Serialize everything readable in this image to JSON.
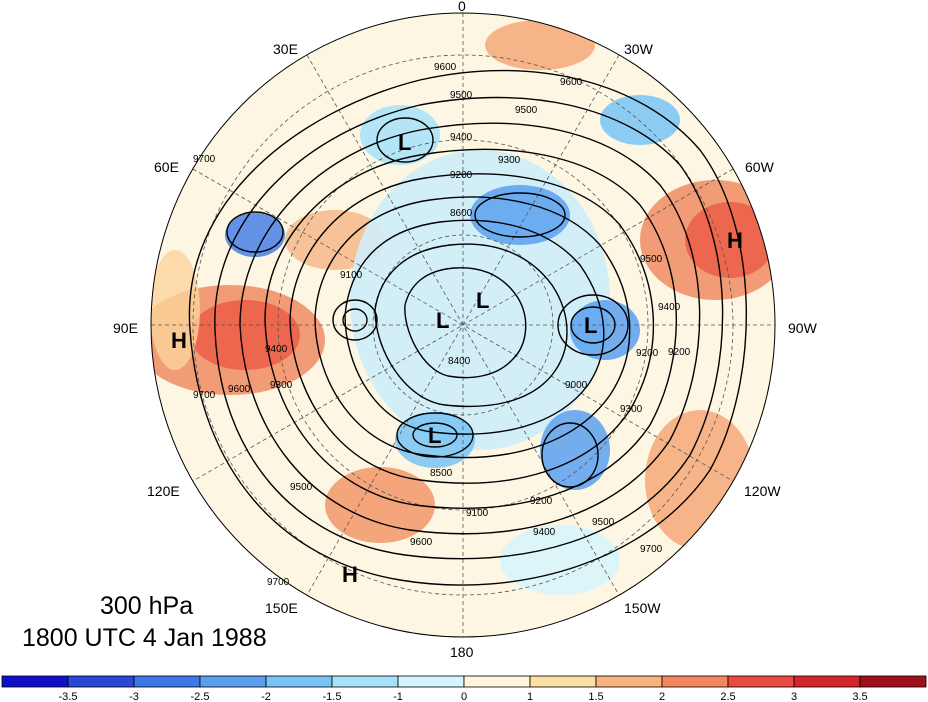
{
  "map": {
    "level": "300 hPa",
    "valid_time": "1800 UTC 4 Jan 1988",
    "longitude_labels": [
      {
        "id": "lon-0",
        "text": "0"
      },
      {
        "id": "lon-30w",
        "text": "30W"
      },
      {
        "id": "lon-60w",
        "text": "60W"
      },
      {
        "id": "lon-90w",
        "text": "90W"
      },
      {
        "id": "lon-120w",
        "text": "120W"
      },
      {
        "id": "lon-150w",
        "text": "150W"
      },
      {
        "id": "lon-180",
        "text": "180"
      },
      {
        "id": "lon-150e",
        "text": "150E"
      },
      {
        "id": "lon-120e",
        "text": "120E"
      },
      {
        "id": "lon-90e",
        "text": "90E"
      },
      {
        "id": "lon-60e",
        "text": "60E"
      },
      {
        "id": "lon-30e",
        "text": "30E"
      }
    ],
    "centers": [
      {
        "id": "low-scandinavia",
        "text": "L"
      },
      {
        "id": "low-pole-1",
        "text": "L"
      },
      {
        "id": "low-pole-2",
        "text": "L"
      },
      {
        "id": "low-canada",
        "text": "L"
      },
      {
        "id": "low-siberia",
        "text": "L"
      },
      {
        "id": "high-atlantic",
        "text": "H"
      },
      {
        "id": "high-asia",
        "text": "H"
      },
      {
        "id": "high-pacific",
        "text": "H"
      }
    ],
    "contour_labels": [
      {
        "id": "c9600-a",
        "text": "9600"
      },
      {
        "id": "c9500-a",
        "text": "9500"
      },
      {
        "id": "c9600-b",
        "text": "9600"
      },
      {
        "id": "c9500-b",
        "text": "9500"
      },
      {
        "id": "c9400-a",
        "text": "9400"
      },
      {
        "id": "c9300-a",
        "text": "9300"
      },
      {
        "id": "c9200-a",
        "text": "9200"
      },
      {
        "id": "c8600-a",
        "text": "8600"
      },
      {
        "id": "c9700-a",
        "text": "9700"
      },
      {
        "id": "c9100-a",
        "text": "9100"
      },
      {
        "id": "c9400-b",
        "text": "9400"
      },
      {
        "id": "c9300-b",
        "text": "9300"
      },
      {
        "id": "c9700-b",
        "text": "9700"
      },
      {
        "id": "c9600-c",
        "text": "9600"
      },
      {
        "id": "c8400-a",
        "text": "8400"
      },
      {
        "id": "c9000-a",
        "text": "9000"
      },
      {
        "id": "c9200-b",
        "text": "9200"
      },
      {
        "id": "c9500-c",
        "text": "9500"
      },
      {
        "id": "c8500-a",
        "text": "8500"
      },
      {
        "id": "c9100-b",
        "text": "9100"
      },
      {
        "id": "c9200-c",
        "text": "9200"
      },
      {
        "id": "c9400-c",
        "text": "9400"
      },
      {
        "id": "c9500-d",
        "text": "9500"
      },
      {
        "id": "c9600-d",
        "text": "9600"
      },
      {
        "id": "c9700-c",
        "text": "9700"
      },
      {
        "id": "c9700-d",
        "text": "9700"
      },
      {
        "id": "c9500-e",
        "text": "9500"
      },
      {
        "id": "c9400-d",
        "text": "9400"
      },
      {
        "id": "c9200-d",
        "text": "9200"
      },
      {
        "id": "c9300-c",
        "text": "9300"
      }
    ]
  },
  "colorbar": {
    "labels": [
      "-3.5",
      "-3",
      "-2.5",
      "-2",
      "-1.5",
      "-1",
      "0",
      "1",
      "1.5",
      "2",
      "2.5",
      "3",
      "3.5"
    ],
    "colors": [
      "#1010c8",
      "#2a48d8",
      "#3c78e6",
      "#5aa0ee",
      "#78c4f4",
      "#a6e2fa",
      "#d6f4fc",
      "#fdf6dc",
      "#fbe0a6",
      "#f7b47c",
      "#f2875e",
      "#ea4a40",
      "#d4242c",
      "#a0101c"
    ]
  }
}
